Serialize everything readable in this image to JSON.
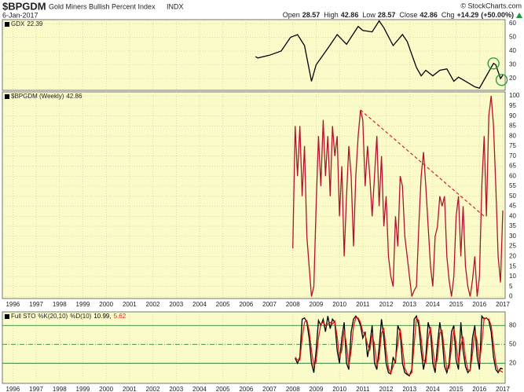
{
  "header": {
    "symbol": "$BPGDM",
    "name": "Gold Miners Bullish Percent Index",
    "exchange": "INDX",
    "date": "6-Jan-2017",
    "copyright": "© StockCharts.com",
    "quote": [
      {
        "label": "Open",
        "value": 28.57
      },
      {
        "label": "High",
        "value": 42.86
      },
      {
        "label": "Low",
        "value": 28.57
      },
      {
        "label": "Close",
        "value": 42.86
      },
      {
        "label": "Chg",
        "value": 14.29,
        "value_label": "+14.29",
        "pct": 50,
        "pct_label": "(+50.00%)"
      }
    ]
  },
  "chart_data": [
    {
      "type": "line",
      "title": "GDX",
      "last": 22.39,
      "xlim": [
        1995.55,
        2017.1
      ],
      "xticks": [
        1996,
        1997,
        1998,
        1999,
        2000,
        2001,
        2002,
        2003,
        2004,
        2005,
        2006,
        2007,
        2008,
        2009,
        2010,
        2011,
        2012,
        2013,
        2014,
        2015,
        2016,
        2017
      ],
      "ylim": [
        11.4,
        62.9
      ],
      "yticks": [
        20,
        30,
        40,
        50,
        60
      ],
      "grid": true,
      "x": [
        2006.4,
        2006.5,
        2007.0,
        2007.5,
        2007.9,
        2008.2,
        2008.5,
        2008.8,
        2009.0,
        2009.5,
        2009.9,
        2010.3,
        2010.8,
        2011.0,
        2011.4,
        2011.7,
        2011.9,
        2012.3,
        2012.7,
        2012.9,
        2013.3,
        2013.5,
        2013.7,
        2014.0,
        2014.3,
        2014.6,
        2014.9,
        2015.1,
        2015.5,
        2015.8,
        2016.0,
        2016.3,
        2016.6,
        2016.7,
        2016.9,
        2017.0
      ],
      "series": [
        {
          "color": "#000000",
          "values": [
            36,
            35,
            37,
            40,
            50,
            52,
            44,
            18,
            30,
            42,
            52,
            45,
            58,
            55,
            54,
            62,
            57,
            44,
            52,
            47,
            28,
            22,
            26,
            22,
            26,
            27,
            18,
            21,
            17,
            14,
            13,
            22,
            31,
            30,
            20,
            22.39
          ]
        }
      ],
      "circles": [
        {
          "x": 2016.6,
          "y": 31,
          "color": "#1a9a3a"
        },
        {
          "x": 2016.95,
          "y": 19,
          "color": "#1a9a3a"
        }
      ]
    },
    {
      "type": "line",
      "title": "$BPGDM (Weekly)",
      "last": 42.86,
      "xlim": [
        1995.55,
        2017.1
      ],
      "xticks": [
        1996,
        1997,
        1998,
        1999,
        2000,
        2001,
        2002,
        2003,
        2004,
        2005,
        2006,
        2007,
        2008,
        2009,
        2010,
        2011,
        2012,
        2013,
        2014,
        2015,
        2016,
        2017
      ],
      "ylim": [
        -1,
        102
      ],
      "yticks": [
        0,
        5,
        10,
        15,
        20,
        25,
        30,
        35,
        40,
        45,
        50,
        55,
        60,
        65,
        70,
        75,
        80,
        85,
        90,
        95,
        100
      ],
      "grid": true,
      "x": [
        2008.0,
        2008.1,
        2008.2,
        2008.3,
        2008.4,
        2008.5,
        2008.6,
        2008.7,
        2008.8,
        2008.9,
        2009.0,
        2009.1,
        2009.2,
        2009.3,
        2009.4,
        2009.5,
        2009.6,
        2009.7,
        2009.8,
        2009.9,
        2010.0,
        2010.1,
        2010.2,
        2010.3,
        2010.4,
        2010.5,
        2010.6,
        2010.7,
        2010.8,
        2010.9,
        2011.0,
        2011.1,
        2011.2,
        2011.3,
        2011.4,
        2011.5,
        2011.6,
        2011.7,
        2011.8,
        2011.9,
        2012.0,
        2012.1,
        2012.2,
        2012.3,
        2012.4,
        2012.5,
        2012.6,
        2012.7,
        2012.8,
        2012.9,
        2013.0,
        2013.1,
        2013.2,
        2013.3,
        2013.4,
        2013.5,
        2013.6,
        2013.7,
        2013.8,
        2013.9,
        2014.0,
        2014.1,
        2014.2,
        2014.3,
        2014.4,
        2014.5,
        2014.6,
        2014.7,
        2014.8,
        2014.9,
        2015.0,
        2015.1,
        2015.2,
        2015.3,
        2015.4,
        2015.5,
        2015.6,
        2015.7,
        2015.8,
        2015.9,
        2016.0,
        2016.1,
        2016.2,
        2016.3,
        2016.4,
        2016.5,
        2016.6,
        2016.7,
        2016.8,
        2016.9,
        2017.0
      ],
      "series": [
        {
          "color": "#b3122e",
          "values": [
            24,
            85,
            60,
            85,
            50,
            75,
            30,
            15,
            0,
            5,
            45,
            80,
            55,
            88,
            60,
            80,
            50,
            85,
            70,
            80,
            40,
            65,
            20,
            50,
            75,
            60,
            25,
            60,
            80,
            93,
            88,
            55,
            75,
            60,
            40,
            60,
            80,
            45,
            70,
            35,
            50,
            20,
            10,
            5,
            40,
            25,
            60,
            55,
            30,
            20,
            10,
            0,
            3,
            5,
            35,
            60,
            72,
            55,
            35,
            15,
            5,
            30,
            35,
            50,
            45,
            50,
            20,
            8,
            0,
            10,
            40,
            50,
            20,
            45,
            15,
            5,
            0,
            8,
            20,
            0,
            10,
            55,
            80,
            40,
            90,
            100,
            85,
            55,
            20,
            7,
            42.86
          ]
        }
      ],
      "trendline": {
        "x": [
          2010.9,
          2016.2
        ],
        "y": [
          93,
          40
        ],
        "color": "#e0201c"
      }
    },
    {
      "type": "line",
      "title": "Full STO",
      "xlim": [
        1995.55,
        2017.1
      ],
      "xticks": [
        1996,
        1997,
        1998,
        1999,
        2000,
        2001,
        2002,
        2003,
        2004,
        2005,
        2006,
        2007,
        2008,
        2009,
        2010,
        2011,
        2012,
        2013,
        2014,
        2015,
        2016,
        2017
      ],
      "ylim": [
        -12,
        101.6
      ],
      "yticks": [
        20,
        50,
        80
      ],
      "grid": true,
      "grid_color": "#2e8b3a",
      "x": [
        2008.0,
        2008.1,
        2008.2,
        2008.3,
        2008.4,
        2008.5,
        2008.6,
        2008.7,
        2008.8,
        2008.9,
        2009.0,
        2009.1,
        2009.2,
        2009.3,
        2009.4,
        2009.5,
        2009.6,
        2009.7,
        2009.8,
        2009.9,
        2010.0,
        2010.1,
        2010.2,
        2010.3,
        2010.4,
        2010.5,
        2010.6,
        2010.7,
        2010.8,
        2010.9,
        2011.0,
        2011.1,
        2011.2,
        2011.3,
        2011.4,
        2011.5,
        2011.6,
        2011.7,
        2011.8,
        2011.9,
        2012.0,
        2012.1,
        2012.2,
        2012.3,
        2012.4,
        2012.5,
        2012.6,
        2012.7,
        2012.8,
        2012.9,
        2013.0,
        2013.1,
        2013.2,
        2013.3,
        2013.4,
        2013.5,
        2013.6,
        2013.7,
        2013.8,
        2013.9,
        2014.0,
        2014.1,
        2014.2,
        2014.3,
        2014.4,
        2014.5,
        2014.6,
        2014.7,
        2014.8,
        2014.9,
        2015.0,
        2015.1,
        2015.2,
        2015.3,
        2015.4,
        2015.5,
        2015.6,
        2015.7,
        2015.8,
        2015.9,
        2016.0,
        2016.1,
        2016.2,
        2016.3,
        2016.4,
        2016.5,
        2016.6,
        2016.7,
        2016.8,
        2016.9,
        2017.0
      ],
      "series": [
        {
          "name": "%K(20,10)",
          "color": "#000000",
          "last": 10.99,
          "last_label": "10.99,",
          "values": [
            null,
            28,
            20,
            30,
            90,
            92,
            85,
            60,
            20,
            5,
            40,
            88,
            80,
            90,
            70,
            95,
            75,
            90,
            85,
            40,
            20,
            60,
            85,
            20,
            10,
            70,
            90,
            95,
            90,
            80,
            60,
            70,
            30,
            50,
            80,
            20,
            10,
            45,
            90,
            60,
            20,
            5,
            3,
            30,
            20,
            80,
            70,
            20,
            5,
            2,
            0,
            10,
            90,
            95,
            80,
            40,
            10,
            30,
            85,
            70,
            20,
            5,
            50,
            85,
            60,
            15,
            5,
            20,
            70,
            80,
            25,
            10,
            85,
            40,
            15,
            5,
            10,
            60,
            80,
            30,
            10,
            95,
            90,
            92,
            88,
            70,
            30,
            10,
            5,
            12,
            10.99
          ]
        },
        {
          "name": "%D(10)",
          "color": "#e0201c",
          "last": 5.62,
          "values": [
            null,
            30,
            25,
            25,
            60,
            85,
            88,
            72,
            40,
            15,
            22,
            60,
            82,
            85,
            80,
            82,
            85,
            82,
            87,
            62,
            30,
            40,
            72,
            50,
            15,
            40,
            78,
            92,
            92,
            85,
            70,
            65,
            50,
            40,
            65,
            50,
            15,
            28,
            68,
            75,
            40,
            12,
            4,
            15,
            25,
            50,
            75,
            45,
            12,
            4,
            1,
            5,
            50,
            92,
            88,
            60,
            25,
            20,
            58,
            78,
            45,
            12,
            28,
            68,
            72,
            38,
            10,
            12,
            45,
            75,
            52,
            18,
            48,
            62,
            28,
            10,
            8,
            35,
            70,
            55,
            20,
            52,
            92,
            91,
            90,
            80,
            50,
            20,
            8,
            8,
            5.62
          ]
        }
      ]
    }
  ]
}
